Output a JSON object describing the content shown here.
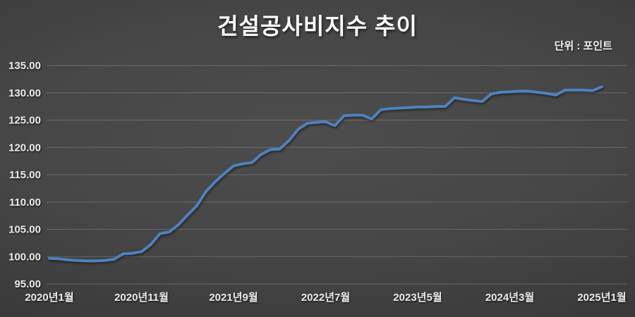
{
  "title": "건설공사비지수 추이",
  "unit_label": "단위 : 포인트",
  "chart_data": {
    "type": "line",
    "title": "건설공사비지수 추이",
    "unit": "포인트",
    "x_tick_labels": [
      "2020년1월",
      "2020년11월",
      "2021년9월",
      "2022년7월",
      "2023년5월",
      "2024년3월",
      "2025년1월"
    ],
    "x_tick_month_indices": [
      0,
      10,
      20,
      30,
      40,
      50,
      60
    ],
    "x_range_months": 61,
    "y_tick_labels": [
      "95.00",
      "100.00",
      "105.00",
      "110.00",
      "115.00",
      "120.00",
      "125.00",
      "130.00",
      "135.00"
    ],
    "y_ticks": [
      95,
      100,
      105,
      110,
      115,
      120,
      125,
      130,
      135
    ],
    "ylim": [
      95,
      135
    ],
    "grid": "horizontal",
    "legend": "none",
    "line_color": "#4f81bd",
    "values": [
      99.7,
      99.6,
      99.4,
      99.3,
      99.2,
      99.2,
      99.3,
      99.5,
      100.5,
      100.6,
      100.9,
      102.2,
      104.2,
      104.5,
      105.8,
      107.6,
      109.3,
      111.9,
      113.7,
      115.2,
      116.6,
      117.0,
      117.2,
      118.7,
      119.6,
      119.7,
      121.2,
      123.3,
      124.4,
      124.6,
      124.7,
      124.0,
      125.8,
      125.9,
      125.9,
      125.2,
      126.9,
      127.1,
      127.2,
      127.3,
      127.4,
      127.4,
      127.5,
      127.5,
      129.1,
      128.8,
      128.6,
      128.4,
      129.8,
      130.1,
      130.2,
      130.3,
      130.3,
      130.1,
      129.9,
      129.6,
      130.5,
      130.5,
      130.5,
      130.4,
      131.1
    ]
  }
}
